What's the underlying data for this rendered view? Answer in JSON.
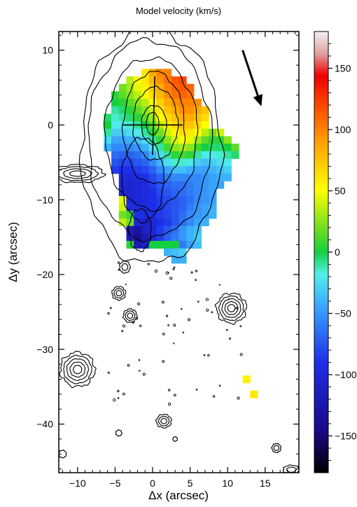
{
  "chart_data": {
    "type": "heatmap",
    "title": "Model velocity (km/s)",
    "xlabel": "Δx (arcsec)",
    "ylabel": "Δy (arcsec)",
    "xlim": [
      -12.5,
      19.5
    ],
    "ylim": [
      -46.5,
      12.5
    ],
    "xticks": [
      -10,
      -5,
      0,
      5,
      10,
      15
    ],
    "yticks": [
      10,
      0,
      -10,
      -20,
      -30,
      -40
    ],
    "colorbar": {
      "label": "Model velocity (km/s)",
      "range": [
        -180,
        180
      ],
      "ticks": [
        150,
        100,
        50,
        0,
        -50,
        -100,
        -150
      ]
    },
    "velocity_field": {
      "cell_size_arcsec": 1,
      "rows": [
        {
          "y": 7,
          "x0": -1,
          "values": [
            60,
            85,
            100,
            100
          ]
        },
        {
          "y": 6,
          "x0": -3,
          "values": [
            35,
            50,
            60,
            80,
            95,
            105,
            115,
            120
          ]
        },
        {
          "y": 5,
          "x0": -4,
          "values": [
            20,
            30,
            45,
            55,
            70,
            85,
            100,
            110,
            115,
            110
          ]
        },
        {
          "y": 4,
          "x0": -5,
          "values": [
            5,
            15,
            25,
            35,
            50,
            65,
            80,
            95,
            105,
            110,
            105
          ]
        },
        {
          "y": 3,
          "x0": -5,
          "values": [
            0,
            5,
            15,
            25,
            35,
            50,
            70,
            85,
            95,
            100,
            100,
            95
          ]
        },
        {
          "y": 2,
          "x0": -5,
          "values": [
            -10,
            -5,
            5,
            15,
            25,
            40,
            60,
            75,
            85,
            95,
            95,
            85,
            75
          ]
        },
        {
          "y": 1,
          "x0": -6,
          "values": [
            -5,
            -15,
            -10,
            -5,
            5,
            15,
            30,
            50,
            65,
            75,
            85,
            85,
            75,
            65
          ]
        },
        {
          "y": 0,
          "x0": -6,
          "values": [
            0,
            -20,
            -20,
            -15,
            -10,
            0,
            15,
            35,
            55,
            65,
            75,
            75,
            65,
            50
          ]
        },
        {
          "y": -1,
          "x0": -6,
          "values": [
            -10,
            -30,
            -30,
            -25,
            -20,
            -10,
            5,
            20,
            40,
            55,
            65,
            60,
            50,
            35,
            20,
            40
          ]
        },
        {
          "y": -2,
          "x0": -6,
          "values": [
            -25,
            -45,
            -45,
            -40,
            -35,
            -25,
            -10,
            5,
            25,
            40,
            50,
            45,
            30,
            15,
            5,
            5,
            25
          ]
        },
        {
          "y": -3,
          "x0": -6,
          "values": [
            -40,
            -55,
            -55,
            -55,
            -50,
            -40,
            -25,
            -10,
            10,
            25,
            30,
            25,
            10,
            0,
            -5,
            -5,
            0,
            15
          ]
        },
        {
          "y": -4,
          "x0": -5,
          "values": [
            -65,
            -70,
            -70,
            -65,
            -55,
            -40,
            -25,
            -10,
            5,
            10,
            5,
            -10,
            -20,
            -20,
            -15,
            -10,
            -5
          ]
        },
        {
          "y": -5,
          "x0": -5,
          "values": [
            -75,
            -80,
            -80,
            -75,
            -70,
            -55,
            -40,
            -25,
            -15,
            -15,
            -20,
            -30,
            -35,
            -30,
            -25,
            -20
          ]
        },
        {
          "y": -6,
          "x0": -5,
          "values": [
            -85,
            -90,
            -90,
            -85,
            -80,
            -70,
            -55,
            -45,
            -35,
            -35,
            -40,
            -45,
            -45,
            -40,
            -35,
            -30
          ]
        },
        {
          "y": -7,
          "x0": -4,
          "values": [
            -95,
            -100,
            -95,
            -90,
            -80,
            -70,
            -60,
            -55,
            -55,
            -55,
            -55,
            -50,
            -45,
            -40,
            -40
          ]
        },
        {
          "y": -8,
          "x0": -4,
          "values": [
            -100,
            -105,
            -100,
            -95,
            -85,
            -75,
            -70,
            -65,
            -65,
            -60,
            -55,
            -50,
            -45,
            -45
          ]
        },
        {
          "y": -9,
          "x0": -4,
          "values": [
            -100,
            -105,
            -100,
            -95,
            -90,
            -80,
            -75,
            -70,
            -65,
            -60,
            -55,
            -50,
            -45
          ]
        },
        {
          "y": -10,
          "x0": -4,
          "values": [
            45,
            -100,
            -100,
            -95,
            -90,
            -85,
            -80,
            -75,
            -70,
            -65,
            -55,
            -50,
            -45
          ]
        },
        {
          "y": -11,
          "x0": -4,
          "values": [
            40,
            -95,
            -95,
            -95,
            -90,
            -85,
            -80,
            -75,
            -70,
            -60,
            -50,
            -45,
            -40
          ]
        },
        {
          "y": -12,
          "x0": -4,
          "values": [
            20,
            10,
            -90,
            -95,
            -90,
            -85,
            -80,
            -75,
            -65,
            -55,
            -50,
            -45,
            -40
          ]
        },
        {
          "y": -13,
          "x0": -4,
          "values": [
            35,
            20,
            -100,
            -110,
            -100,
            -90,
            -85,
            -75,
            -65,
            -55,
            -45,
            -40
          ]
        },
        {
          "y": -14,
          "x0": -3,
          "values": [
            -120,
            -130,
            -110,
            -100,
            -85,
            -75,
            -65,
            -50,
            -40,
            -35
          ]
        },
        {
          "y": -15,
          "x0": -3,
          "values": [
            -110,
            -140,
            -120,
            -100,
            -85,
            -70,
            -60,
            -50,
            -40,
            -30
          ]
        },
        {
          "y": -16,
          "x0": -3,
          "values": [
            5,
            -120,
            -110,
            0,
            0,
            0,
            0,
            -60,
            -45,
            -35
          ]
        },
        {
          "y": -17,
          "x0": 2,
          "values": [
            -40,
            -35,
            -30
          ]
        },
        {
          "y": -18,
          "x0": 3,
          "values": [
            -40,
            -40
          ]
        },
        {
          "y": -34,
          "x0": 12.5,
          "values": [
            55
          ]
        },
        {
          "y": -36,
          "x0": 13.5,
          "values": [
            60
          ]
        }
      ]
    },
    "contours": {
      "galaxy_center": [
        0,
        0
      ],
      "sources": [
        {
          "x": -10,
          "y": -6.5,
          "rx": 3.5,
          "ry": 1.2,
          "levels": 4
        },
        {
          "x": -4.5,
          "y": -22.5,
          "rx": 0.9,
          "ry": 0.9,
          "levels": 3
        },
        {
          "x": -3,
          "y": -25.5,
          "rx": 0.9,
          "ry": 0.9,
          "levels": 3
        },
        {
          "x": 10.5,
          "y": -24.5,
          "rx": 2.0,
          "ry": 2.0,
          "levels": 5
        },
        {
          "x": -10,
          "y": -32.7,
          "rx": 2.3,
          "ry": 2.3,
          "levels": 5
        },
        {
          "x": 1.5,
          "y": -39.6,
          "rx": 1.0,
          "ry": 0.9,
          "levels": 3
        },
        {
          "x": -4.5,
          "y": -41.2,
          "rx": 0.4,
          "ry": 0.4,
          "levels": 1
        },
        {
          "x": 16.5,
          "y": -43.2,
          "rx": 0.6,
          "ry": 0.6,
          "levels": 2
        },
        {
          "x": 18.5,
          "y": -46.1,
          "rx": 1.1,
          "ry": 0.6,
          "levels": 2
        },
        {
          "x": -12,
          "y": -44,
          "rx": 0.5,
          "ry": 0.5,
          "levels": 1
        },
        {
          "x": -3.7,
          "y": -19.0,
          "rx": 0.7,
          "ry": 0.8,
          "levels": 2
        },
        {
          "x": 3,
          "y": -42,
          "rx": 0.3,
          "ry": 0.3,
          "levels": 1
        }
      ]
    },
    "annotations": {
      "arrow": {
        "from": [
          12.0,
          10.0
        ],
        "to": [
          14.5,
          2.5
        ]
      },
      "cross": {
        "center": [
          0,
          0
        ],
        "h_half_length": 4,
        "v_top": 6.5,
        "v_bottom": -4
      }
    }
  }
}
